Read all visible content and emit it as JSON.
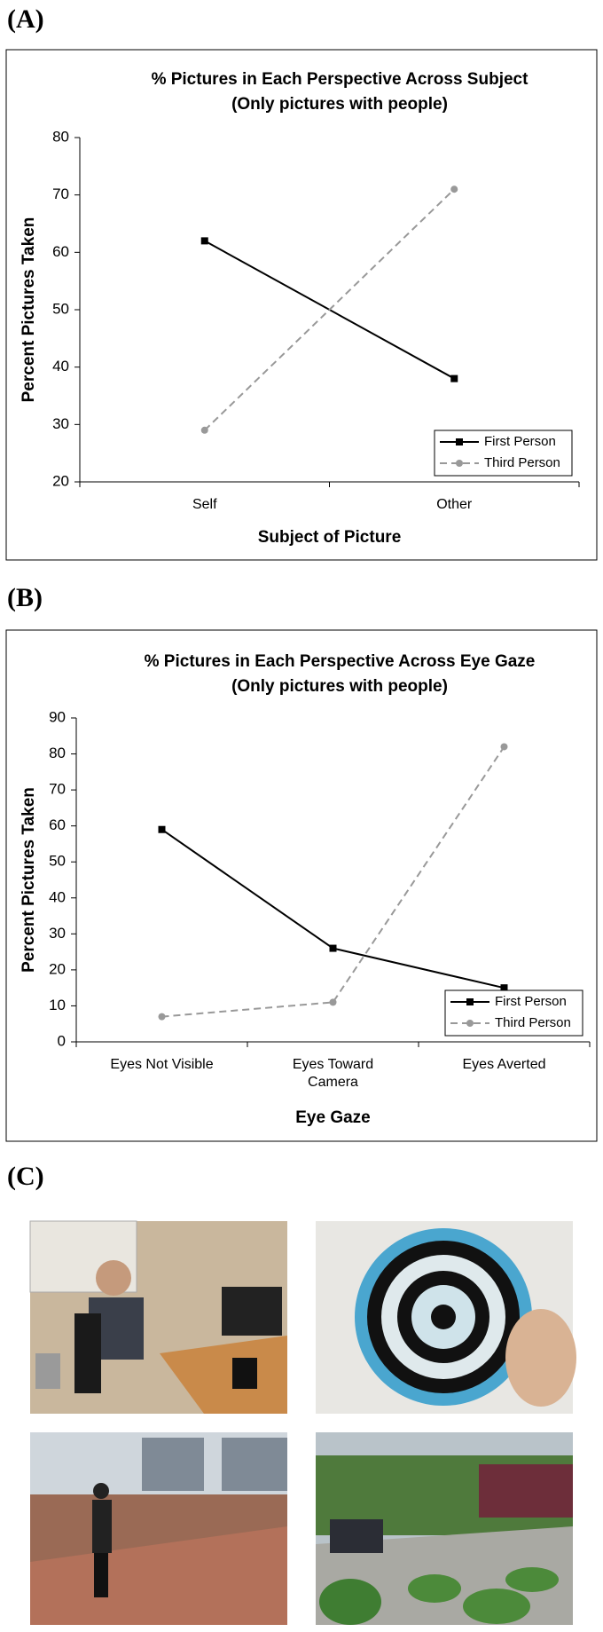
{
  "panel_labels": [
    "(A)",
    "(B)",
    "(C)"
  ],
  "chart_data": [
    {
      "type": "line",
      "title": "% Pictures in Each Perspective Across Subject",
      "subtitle": "(Only pictures with people)",
      "x_label": "Subject of Picture",
      "y_label": "Percent Pictures Taken",
      "categories": [
        "Self",
        "Other"
      ],
      "series": [
        {
          "name": "First Person",
          "color": "#000000",
          "line_style": "solid",
          "marker": "square",
          "values": [
            62,
            38
          ]
        },
        {
          "name": "Third Person",
          "color": "#999999",
          "line_style": "dashed",
          "marker": "circle",
          "values": [
            29,
            71
          ]
        }
      ],
      "ylim": [
        20,
        80
      ],
      "yticks": [
        20,
        30,
        40,
        50,
        60,
        70,
        80
      ],
      "legend": "lower right"
    },
    {
      "type": "line",
      "title": "% Pictures in Each Perspective Across Eye Gaze",
      "subtitle": "(Only pictures with people)",
      "x_label": "Eye Gaze",
      "y_label": "Percent Pictures Taken",
      "categories": [
        "Eyes Not Visible",
        "Eyes Toward Camera",
        "Eyes Averted"
      ],
      "series": [
        {
          "name": "First Person",
          "color": "#000000",
          "line_style": "solid",
          "marker": "square",
          "values": [
            59,
            26,
            15
          ]
        },
        {
          "name": "Third Person",
          "color": "#999999",
          "line_style": "dashed",
          "marker": "circle",
          "values": [
            7,
            11,
            82
          ]
        }
      ],
      "ylim": [
        0,
        90
      ],
      "yticks": [
        0,
        10,
        20,
        30,
        40,
        50,
        60,
        70,
        80,
        90
      ],
      "legend": "lower right"
    }
  ]
}
